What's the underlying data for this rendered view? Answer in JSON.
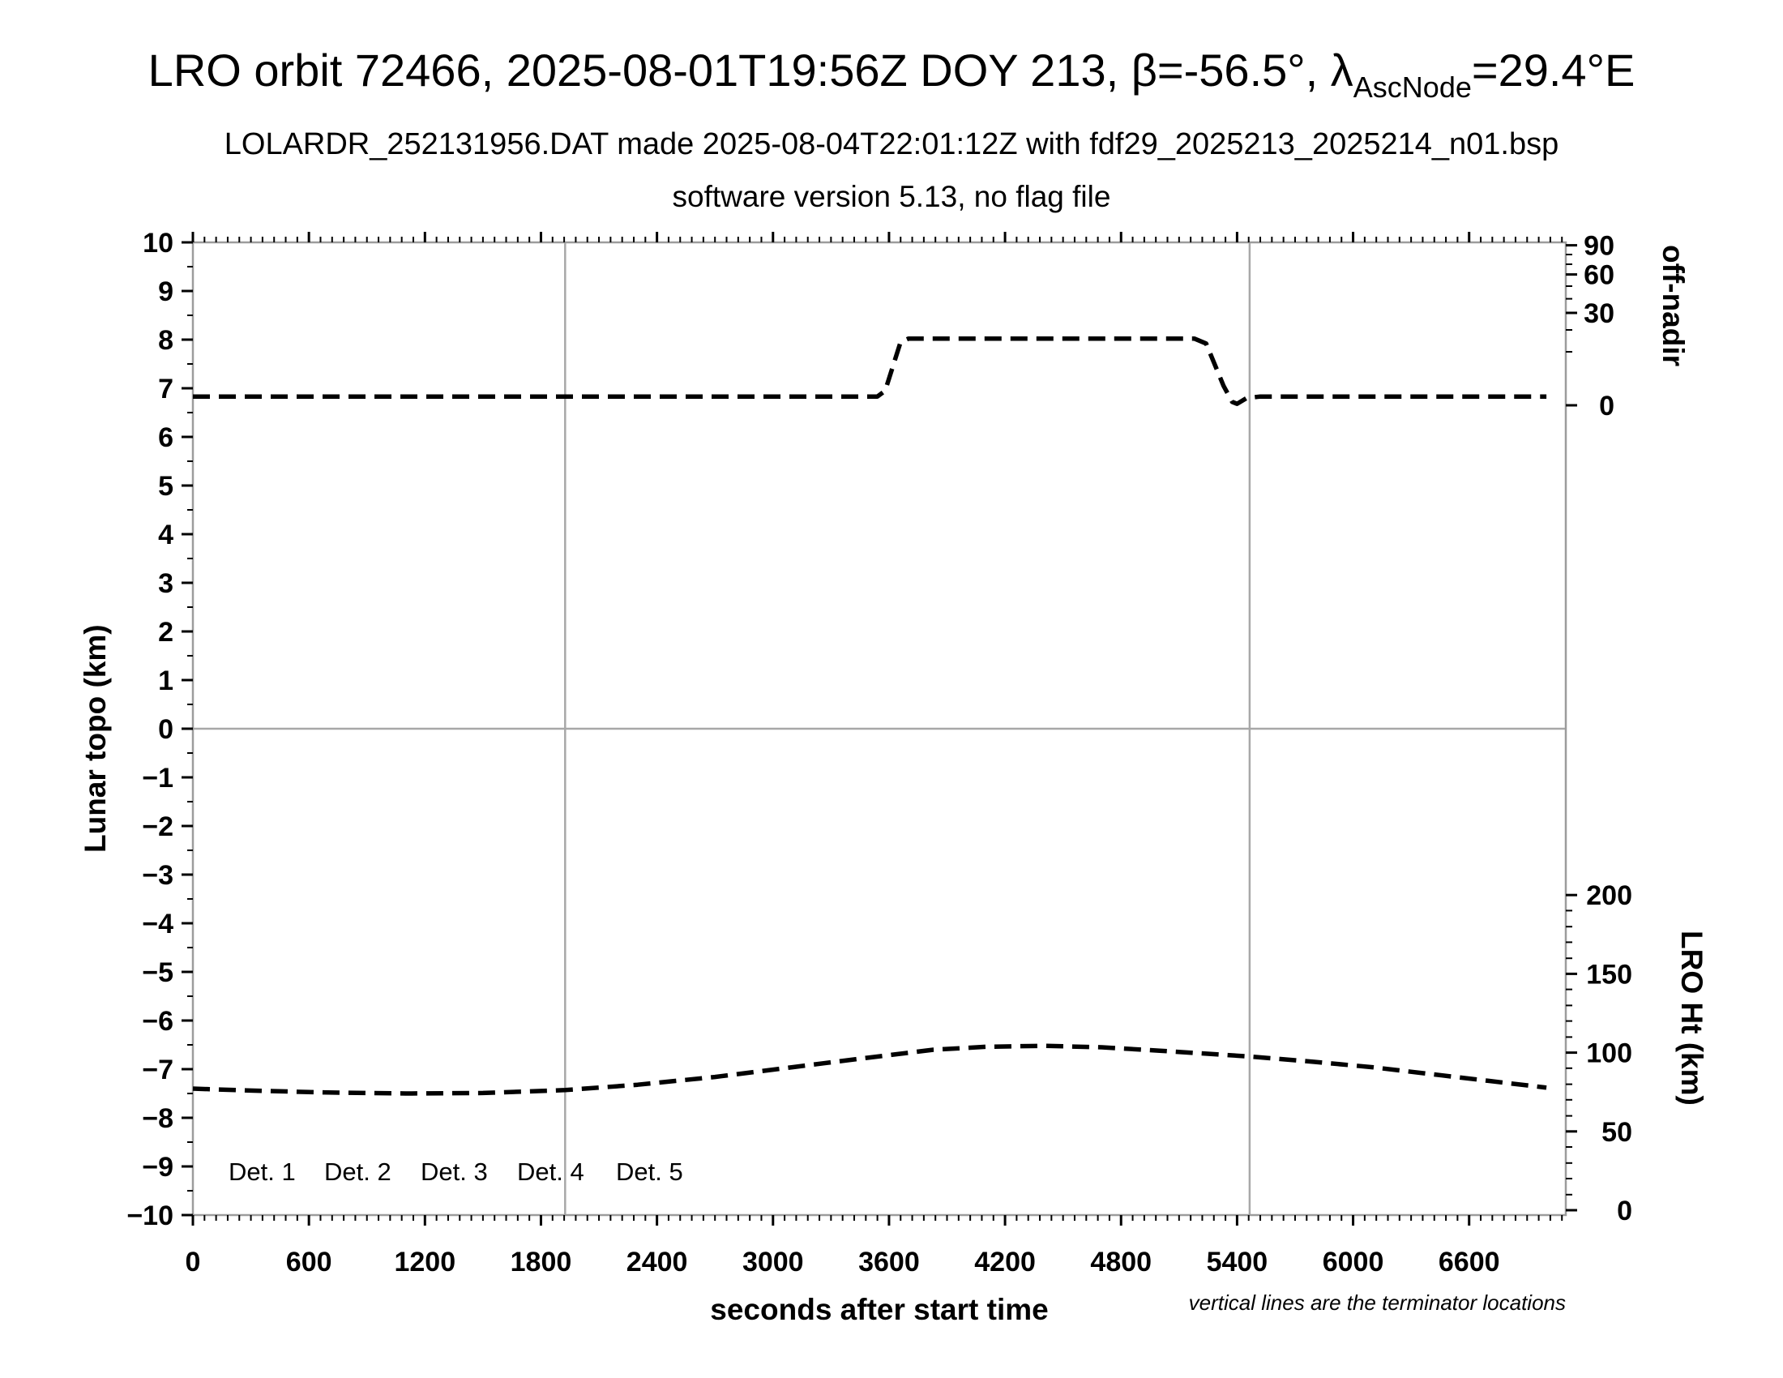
{
  "header": {
    "title_prefix": "LRO orbit 72466, 2025-08-01T19:56Z DOY 213, β=-56.5°, λ",
    "title_sub": "AscNode",
    "title_suffix": "=29.4°E",
    "subtitle": "LOLARDR_252131956.DAT made 2025-08-04T22:01:12Z with fdf29_2025213_2025214_n01.bsp",
    "subsubtitle": "software version 5.13, no flag file"
  },
  "footnote": "vertical lines are the terminator locations",
  "legend": [
    {
      "label": "Det. 1",
      "color": "#000000"
    },
    {
      "label": "Det. 2",
      "color": "#0000ff"
    },
    {
      "label": "Det. 3",
      "color": "#00e532"
    },
    {
      "label": "Det. 4",
      "color": "#ffa500"
    },
    {
      "label": "Det. 5",
      "color": "#ff0000"
    }
  ],
  "chart_data": {
    "type": "line",
    "xlabel": "seconds after start time",
    "ylabel_left": "Lunar topo (km)",
    "ylabel_right_top": "off-nadir",
    "ylabel_right_bottom": "LRO Ht (km)",
    "x_range": [
      0,
      7100
    ],
    "y_range": [
      -10,
      10
    ],
    "x_major_ticks": [
      0,
      600,
      1200,
      1800,
      2400,
      3000,
      3600,
      4200,
      4800,
      5400,
      6000,
      6600
    ],
    "x_minor_step": 60,
    "y_major_step": 1,
    "y_minor_step": 0.5,
    "grid": {
      "zero_line": true,
      "terminator_lines_s": [
        1925,
        5465
      ]
    },
    "line_color": "#000000",
    "frame_color": "#9c9c9c",
    "guide_color": "#a8a8a8",
    "off_nadir_axis": {
      "major_ticks": [
        {
          "label": "90",
          "topo": 9.94
        },
        {
          "label": "60",
          "topo": 9.34
        },
        {
          "label": "30",
          "topo": 8.55
        },
        {
          "label": "0",
          "topo": 6.65
        }
      ],
      "minor_ticks_topo": [
        9.75,
        9.55,
        9.1,
        8.84,
        8.2,
        7.75
      ]
    },
    "lro_ht_axis": {
      "major_ticks": [
        {
          "label": "200",
          "topo": -3.42
        },
        {
          "label": "150",
          "topo": -5.04
        },
        {
          "label": "100",
          "topo": -6.66
        },
        {
          "label": "50",
          "topo": -8.28
        },
        {
          "label": "0",
          "topo": -9.9
        }
      ],
      "minor_ticks_topo": [
        -9.58,
        -9.25,
        -8.93,
        -8.6,
        -7.96,
        -7.63,
        -7.31,
        -6.98,
        -6.34,
        -6.01,
        -5.69,
        -5.36,
        -4.72,
        -4.39,
        -4.07,
        -3.74
      ]
    },
    "series": [
      {
        "name": "off-nadir angle (dashed, upper curve, read on right off-nadir axis)",
        "style": "dashed",
        "approx_deg": {
          "nominal": 0.3,
          "slew_plateau": 15.5
        },
        "points_t_topo": [
          [
            0,
            6.83
          ],
          [
            600,
            6.83
          ],
          [
            1200,
            6.83
          ],
          [
            1800,
            6.83
          ],
          [
            2400,
            6.83
          ],
          [
            3000,
            6.83
          ],
          [
            3540,
            6.83
          ],
          [
            3580,
            6.95
          ],
          [
            3660,
            7.95
          ],
          [
            3700,
            8.02
          ],
          [
            4200,
            8.02
          ],
          [
            4800,
            8.02
          ],
          [
            5180,
            8.02
          ],
          [
            5240,
            7.92
          ],
          [
            5330,
            7.05
          ],
          [
            5375,
            6.72
          ],
          [
            5400,
            6.68
          ],
          [
            5450,
            6.8
          ],
          [
            5520,
            6.83
          ],
          [
            6000,
            6.83
          ],
          [
            6600,
            6.83
          ],
          [
            7000,
            6.83
          ]
        ]
      },
      {
        "name": "LRO height (dashed, lower curve, read on right LRO Ht axis)",
        "style": "dashed",
        "approx_height_km": {
          "start": 77,
          "min": 74,
          "max": 104,
          "end": 77
        },
        "points_t_topo": [
          [
            0,
            -7.4
          ],
          [
            300,
            -7.44
          ],
          [
            700,
            -7.48
          ],
          [
            1100,
            -7.5
          ],
          [
            1500,
            -7.49
          ],
          [
            1925,
            -7.43
          ],
          [
            2300,
            -7.32
          ],
          [
            2700,
            -7.16
          ],
          [
            3100,
            -6.96
          ],
          [
            3500,
            -6.76
          ],
          [
            3830,
            -6.6
          ],
          [
            4100,
            -6.54
          ],
          [
            4400,
            -6.52
          ],
          [
            4700,
            -6.55
          ],
          [
            5000,
            -6.62
          ],
          [
            5465,
            -6.74
          ],
          [
            5800,
            -6.85
          ],
          [
            6100,
            -6.96
          ],
          [
            6400,
            -7.1
          ],
          [
            6700,
            -7.24
          ],
          [
            7000,
            -7.38
          ]
        ]
      }
    ]
  }
}
